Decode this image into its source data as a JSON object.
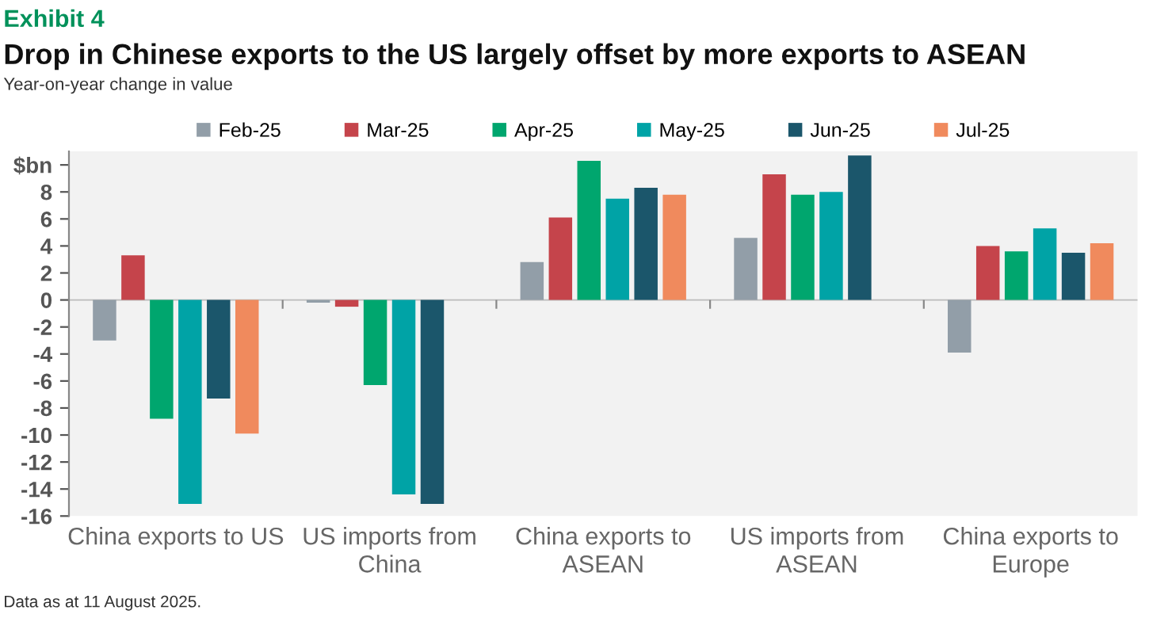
{
  "chart_data": {
    "type": "bar",
    "title": "Drop in Chinese exports to the US largely offset by more exports to ASEAN",
    "subtitle": "Year-on-year change in value",
    "annotations": [
      "Exhibit 4",
      "Data as at 11 August 2025."
    ],
    "categories": [
      "China exports to US",
      "US imports from China",
      "China exports to ASEAN",
      "US imports from ASEAN",
      "China exports to Europe"
    ],
    "series": [
      {
        "name": "Feb-25",
        "color": "#929ea8",
        "values": [
          -3.0,
          -0.2,
          2.8,
          4.6,
          -3.9
        ]
      },
      {
        "name": "Mar-25",
        "color": "#c5444b",
        "values": [
          3.3,
          -0.5,
          6.1,
          9.3,
          4.0
        ]
      },
      {
        "name": "Apr-25",
        "color": "#00a66e",
        "values": [
          -8.8,
          -6.3,
          10.3,
          7.8,
          3.6
        ]
      },
      {
        "name": "May-25",
        "color": "#00a3a6",
        "values": [
          -15.1,
          -14.4,
          7.5,
          8.0,
          5.3
        ]
      },
      {
        "name": "Jun-25",
        "color": "#1b566b",
        "values": [
          -7.3,
          -15.1,
          8.3,
          10.7,
          3.5
        ]
      },
      {
        "name": "Jul-25",
        "color": "#f08a5d",
        "values": [
          -9.9,
          null,
          7.8,
          null,
          4.2
        ]
      }
    ],
    "ylim": [
      -16,
      11
    ],
    "yticks": [
      -16,
      -14,
      -12,
      -10,
      -8,
      -6,
      -4,
      -2,
      0,
      2,
      4,
      6,
      8,
      {
        "value": 10,
        "label": "$bn"
      }
    ],
    "ref_lines": [
      {
        "axis": "y",
        "value": 0,
        "color": "#bbbbbb"
      }
    ],
    "grid": false,
    "legend": "top"
  }
}
